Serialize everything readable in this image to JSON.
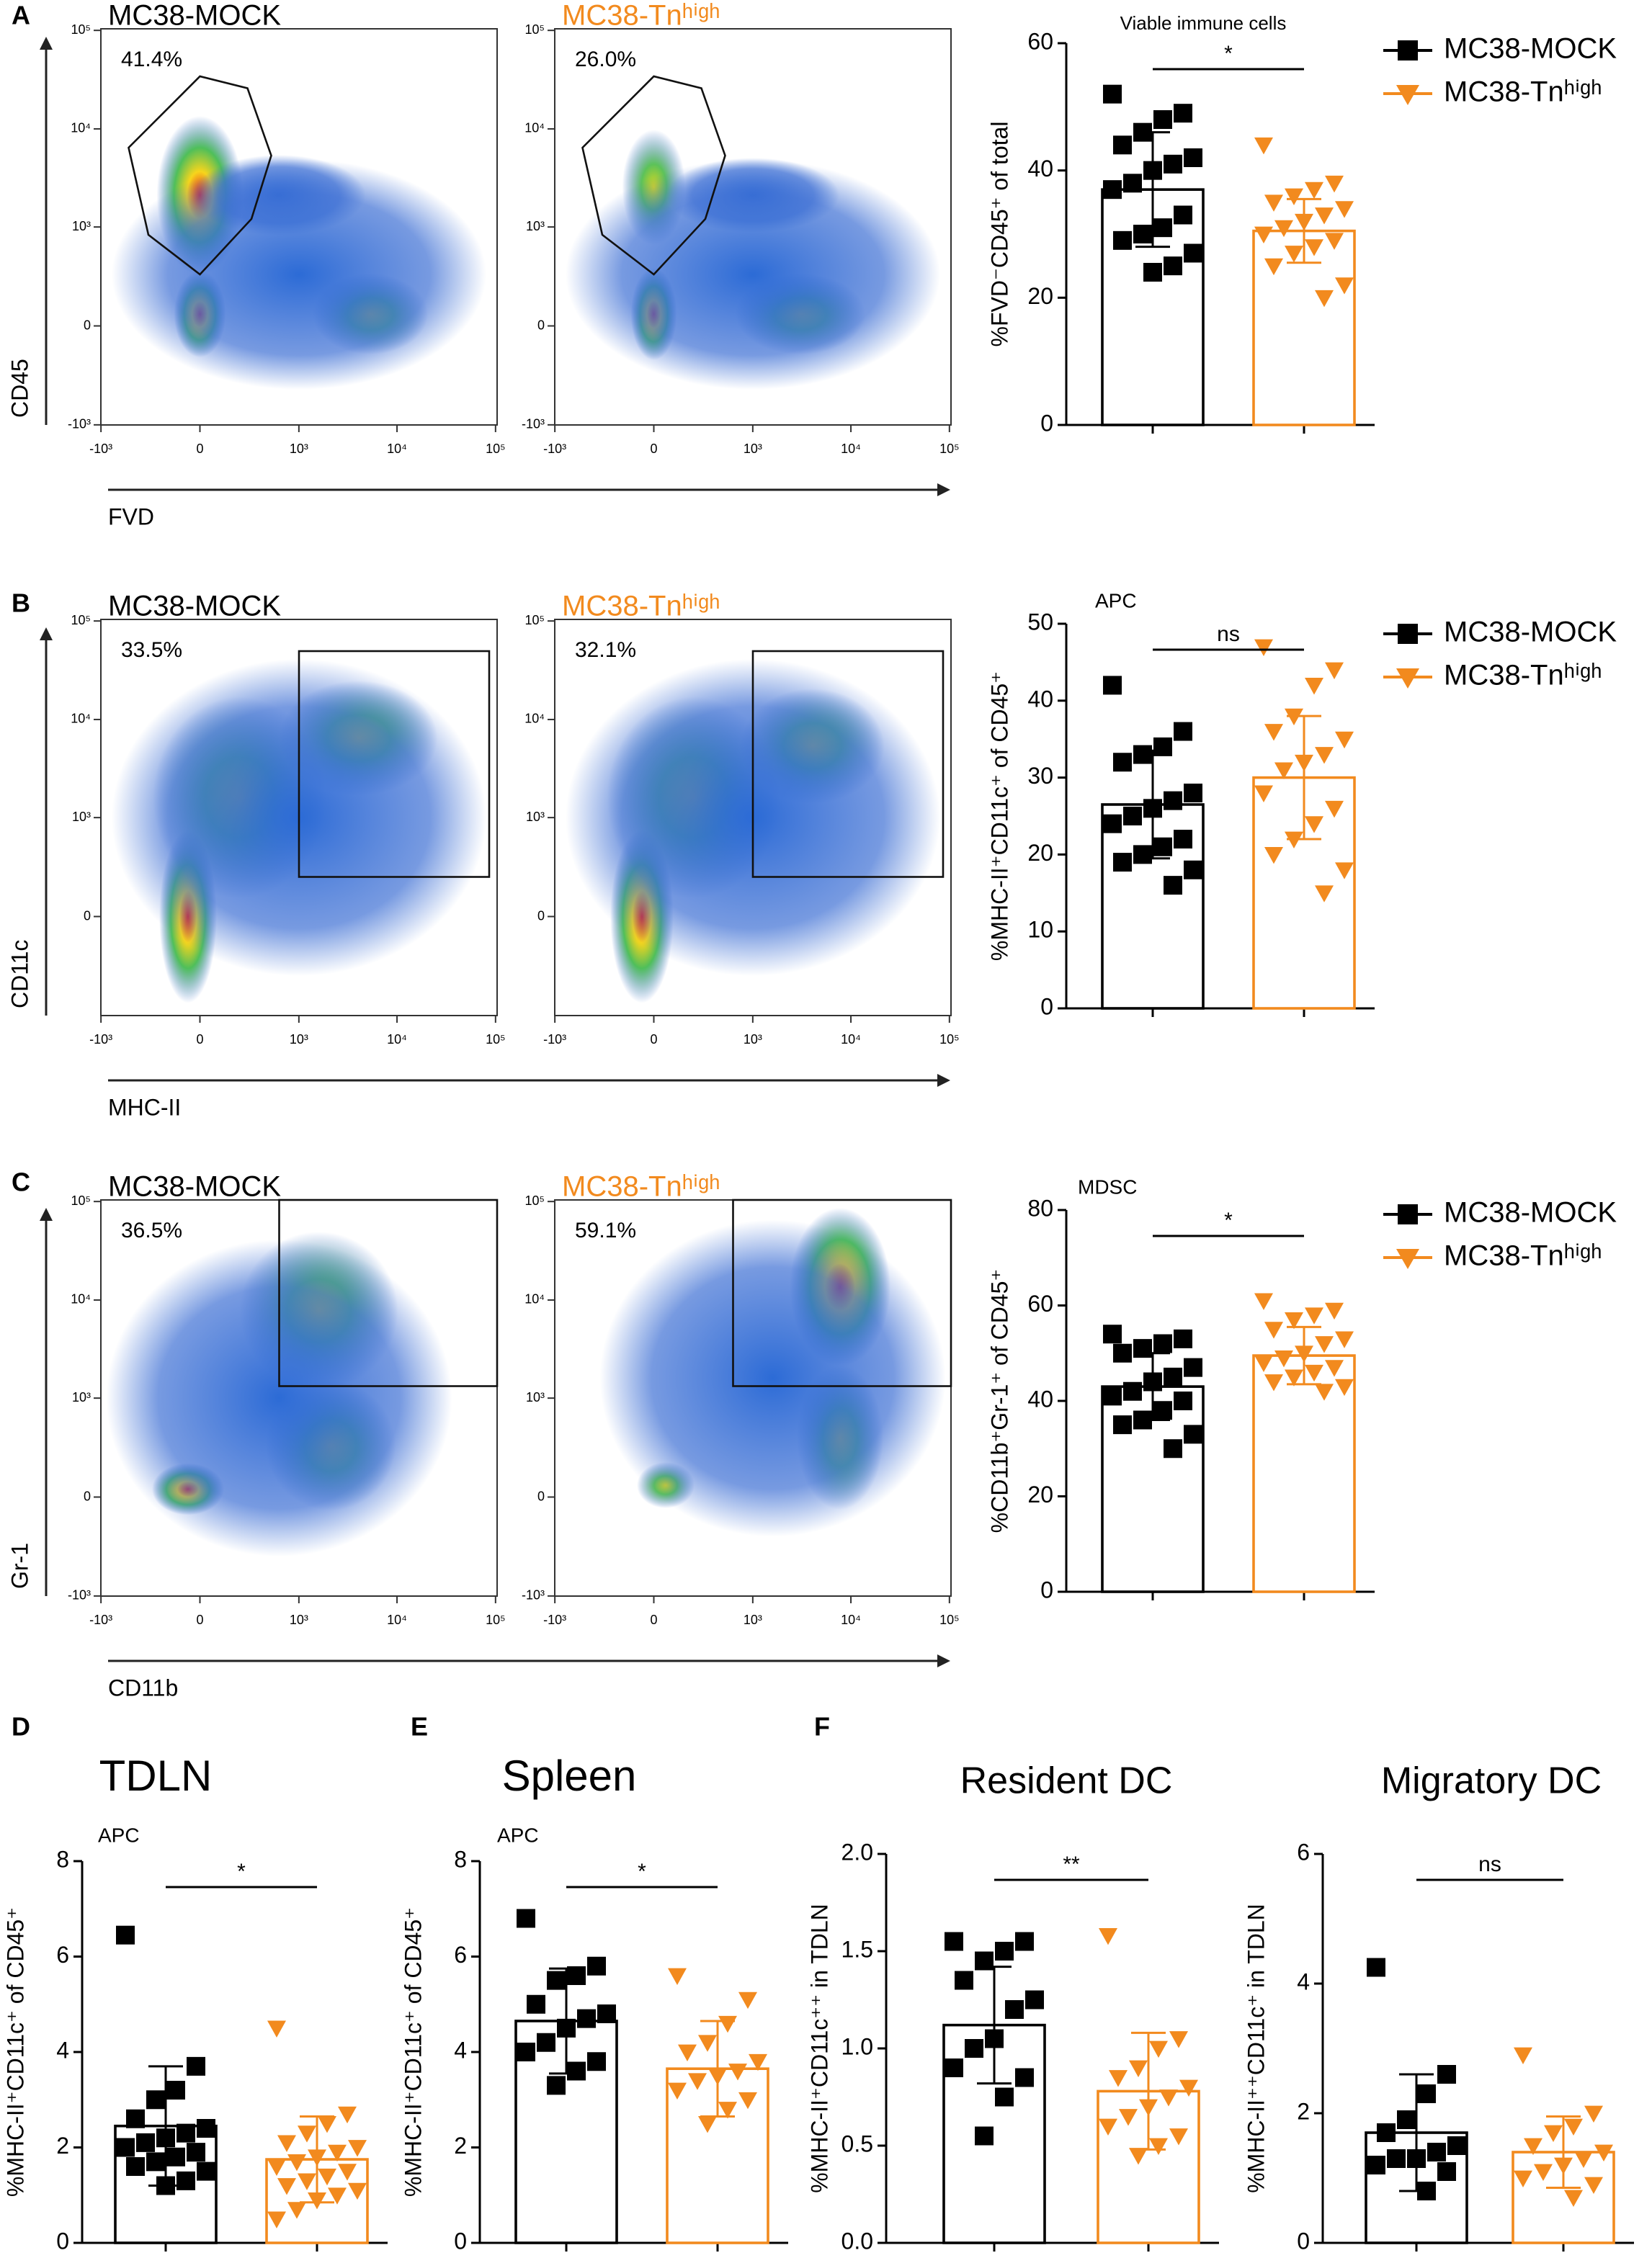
{
  "panel_labels": [
    "A",
    "B",
    "C",
    "D",
    "E",
    "F"
  ],
  "chart_data": [
    {
      "type": "flow",
      "xlabel": "FVD",
      "ylabel": "CD45",
      "plots": [
        {
          "title": "MC38-MOCK",
          "color": "#000000",
          "gate": "41.4%"
        },
        {
          "title": "MC38-Tnʰⁱᵍʰ",
          "color": "#f28a1e",
          "gate": "26.0%"
        }
      ],
      "xticks": [
        {
          "value": -1000,
          "label": "-10³"
        },
        0,
        {
          "value": 1000,
          "label": "10³"
        },
        {
          "value": 10000,
          "label": "10⁴"
        },
        {
          "value": 100000,
          "label": "10⁵"
        }
      ],
      "yticks": [
        {
          "value": -1000,
          "label": "-10³"
        },
        0,
        {
          "value": 1000,
          "label": "10³"
        },
        {
          "value": 10000,
          "label": "10⁴"
        },
        {
          "value": 100000,
          "label": "10⁵"
        }
      ]
    },
    {
      "type": "bar",
      "title": "Viable immune cells",
      "ylabel": "%FVD⁻CD45⁺ of total",
      "ylim": [
        0,
        60
      ],
      "yticks": [
        0,
        20,
        40,
        60
      ],
      "significance": "*",
      "legend": true,
      "series": [
        {
          "name": "MC38-MOCK",
          "color": "#000000",
          "marker": "square",
          "value": 37,
          "error": 9,
          "points": [
            52,
            49,
            48,
            46,
            44,
            42,
            41,
            40,
            38,
            37,
            33,
            31,
            30,
            29,
            27,
            25,
            24
          ]
        },
        {
          "name": "MC38-Tnʰⁱᵍʰ",
          "color": "#f28a1e",
          "marker": "triangle",
          "value": 30.5,
          "error": 5,
          "points": [
            44,
            38,
            37,
            36,
            35,
            34,
            33,
            32,
            31,
            30,
            29,
            28,
            27,
            25,
            22,
            20
          ]
        }
      ]
    },
    {
      "type": "flow",
      "xlabel": "MHC-II",
      "ylabel": "CD11c",
      "plots": [
        {
          "title": "MC38-MOCK",
          "color": "#000000",
          "gate": "33.5%"
        },
        {
          "title": "MC38-Tnʰⁱᵍʰ",
          "color": "#f28a1e",
          "gate": "32.1%"
        }
      ],
      "xticks": [
        {
          "value": -1000,
          "label": "-10³"
        },
        0,
        {
          "value": 1000,
          "label": "10³"
        },
        {
          "value": 10000,
          "label": "10⁴"
        },
        {
          "value": 100000,
          "label": "10⁵"
        }
      ],
      "yticks": [
        0,
        {
          "value": 1000,
          "label": "10³"
        },
        {
          "value": 10000,
          "label": "10⁴"
        },
        {
          "value": 100000,
          "label": "10⁵"
        }
      ]
    },
    {
      "type": "bar",
      "title": "APC",
      "ylabel": "%MHC-II⁺CD11c⁺ of CD45⁺",
      "ylim": [
        0,
        50
      ],
      "yticks": [
        0,
        10,
        20,
        30,
        40,
        50
      ],
      "significance": "ns",
      "legend": true,
      "series": [
        {
          "name": "MC38-MOCK",
          "color": "#000000",
          "marker": "square",
          "value": 26.5,
          "error": 7,
          "points": [
            42,
            36,
            34,
            33,
            32,
            28,
            27,
            26,
            25,
            24,
            22,
            21,
            20,
            19,
            18,
            16
          ]
        },
        {
          "name": "MC38-Tnʰⁱᵍʰ",
          "color": "#f28a1e",
          "marker": "triangle",
          "value": 30,
          "error": 8,
          "points": [
            47,
            44,
            42,
            38,
            36,
            35,
            33,
            32,
            31,
            28,
            26,
            24,
            22,
            20,
            18,
            15
          ]
        }
      ]
    },
    {
      "type": "flow",
      "xlabel": "CD11b",
      "ylabel": "Gr-1",
      "plots": [
        {
          "title": "MC38-MOCK",
          "color": "#000000",
          "gate": "36.5%"
        },
        {
          "title": "MC38-Tnʰⁱᵍʰ",
          "color": "#f28a1e",
          "gate": "59.1%"
        }
      ],
      "xticks": [
        {
          "value": -1000,
          "label": "-10³"
        },
        0,
        {
          "value": 1000,
          "label": "10³"
        },
        {
          "value": 10000,
          "label": "10⁴"
        },
        {
          "value": 100000,
          "label": "10⁵"
        }
      ],
      "yticks": [
        {
          "value": -1000,
          "label": "-10³"
        },
        0,
        {
          "value": 1000,
          "label": "10³"
        },
        {
          "value": 10000,
          "label": "10⁴"
        },
        {
          "value": 100000,
          "label": "10⁵"
        }
      ]
    },
    {
      "type": "bar",
      "title": "MDSC",
      "ylabel": "%CD11b⁺Gr-1⁺ of CD45⁺",
      "ylim": [
        0,
        80
      ],
      "yticks": [
        0,
        20,
        40,
        60,
        80
      ],
      "significance": "*",
      "legend": true,
      "series": [
        {
          "name": "MC38-MOCK",
          "color": "#000000",
          "marker": "square",
          "value": 43,
          "error": 7,
          "points": [
            54,
            53,
            52,
            51,
            50,
            47,
            45,
            44,
            42,
            41,
            40,
            38,
            36,
            35,
            33,
            30
          ]
        },
        {
          "name": "MC38-Tnʰⁱᵍʰ",
          "color": "#f28a1e",
          "marker": "triangle",
          "value": 49.5,
          "error": 6,
          "points": [
            61,
            59,
            58,
            57,
            55,
            53,
            52,
            50,
            49,
            48,
            47,
            46,
            45,
            44,
            43,
            42
          ]
        }
      ]
    },
    {
      "type": "bar",
      "title": "TDLN",
      "subtitle": "APC",
      "ylabel": "%MHC-II⁺CD11c⁺ of CD45⁺",
      "ylim": [
        0,
        8
      ],
      "yticks": [
        0,
        2,
        4,
        6,
        8
      ],
      "significance": "*",
      "series": [
        {
          "color": "#000000",
          "marker": "square",
          "value": 2.45,
          "error": 1.25,
          "points": [
            6.45,
            3.7,
            3.2,
            3.0,
            2.6,
            2.4,
            2.3,
            2.2,
            2.1,
            2.0,
            1.9,
            1.8,
            1.7,
            1.6,
            1.5,
            1.3,
            1.2
          ]
        },
        {
          "color": "#f28a1e",
          "marker": "triangle",
          "value": 1.75,
          "error": 0.9,
          "points": [
            4.5,
            2.7,
            2.5,
            2.3,
            2.1,
            2.0,
            1.9,
            1.8,
            1.7,
            1.6,
            1.5,
            1.4,
            1.3,
            1.2,
            1.1,
            1.0,
            0.9,
            0.7,
            0.5
          ]
        }
      ]
    },
    {
      "type": "bar",
      "title": "Spleen",
      "subtitle": "APC",
      "ylabel": "%MHC-II⁺CD11c⁺ of CD45⁺",
      "ylim": [
        0,
        8
      ],
      "yticks": [
        0,
        2,
        4,
        6,
        8
      ],
      "significance": "*",
      "series": [
        {
          "color": "#000000",
          "marker": "square",
          "value": 4.65,
          "error": 1.1,
          "points": [
            6.8,
            5.8,
            5.6,
            5.5,
            5.0,
            4.8,
            4.7,
            4.5,
            4.2,
            4.0,
            3.8,
            3.6,
            3.3
          ]
        },
        {
          "color": "#f28a1e",
          "marker": "triangle",
          "value": 3.65,
          "error": 1.0,
          "points": [
            5.6,
            5.1,
            4.6,
            4.2,
            4.0,
            3.8,
            3.6,
            3.5,
            3.4,
            3.2,
            3.0,
            2.8,
            2.5
          ]
        }
      ]
    },
    {
      "type": "bar",
      "title": "Resident DC",
      "ylabel": "%MHC-II⁺CD11c⁺⁺ in TDLN",
      "ylim": [
        0,
        2
      ],
      "yticks": [
        {
          "value": 0,
          "label": "0.0"
        },
        0.5,
        {
          "value": 1,
          "label": "1.0"
        },
        1.5,
        {
          "value": 2,
          "label": "2.0"
        }
      ],
      "significance": "**",
      "series": [
        {
          "color": "#000000",
          "marker": "square",
          "value": 1.12,
          "error": 0.3,
          "points": [
            1.55,
            1.55,
            1.5,
            1.45,
            1.35,
            1.25,
            1.2,
            1.05,
            1.0,
            0.9,
            0.85,
            0.75,
            0.55
          ]
        },
        {
          "color": "#f28a1e",
          "marker": "triangle",
          "value": 0.78,
          "error": 0.3,
          "points": [
            1.58,
            1.05,
            1.0,
            0.9,
            0.85,
            0.8,
            0.75,
            0.7,
            0.65,
            0.6,
            0.55,
            0.5,
            0.45
          ]
        }
      ]
    },
    {
      "type": "bar",
      "title": "Migratory DC",
      "ylabel": "%MHC-II⁺⁺CD11c⁺ in TDLN",
      "ylim": [
        0,
        6
      ],
      "yticks": [
        0,
        2,
        4,
        6
      ],
      "significance": "ns",
      "series": [
        {
          "color": "#000000",
          "marker": "square",
          "value": 1.7,
          "error": 0.9,
          "points": [
            4.25,
            2.6,
            2.3,
            1.9,
            1.7,
            1.5,
            1.4,
            1.3,
            1.3,
            1.2,
            1.1,
            0.8
          ]
        },
        {
          "color": "#f28a1e",
          "marker": "triangle",
          "value": 1.4,
          "error": 0.55,
          "points": [
            2.9,
            2.0,
            1.8,
            1.7,
            1.5,
            1.4,
            1.3,
            1.2,
            1.1,
            1.0,
            0.9,
            0.7
          ]
        }
      ]
    }
  ]
}
